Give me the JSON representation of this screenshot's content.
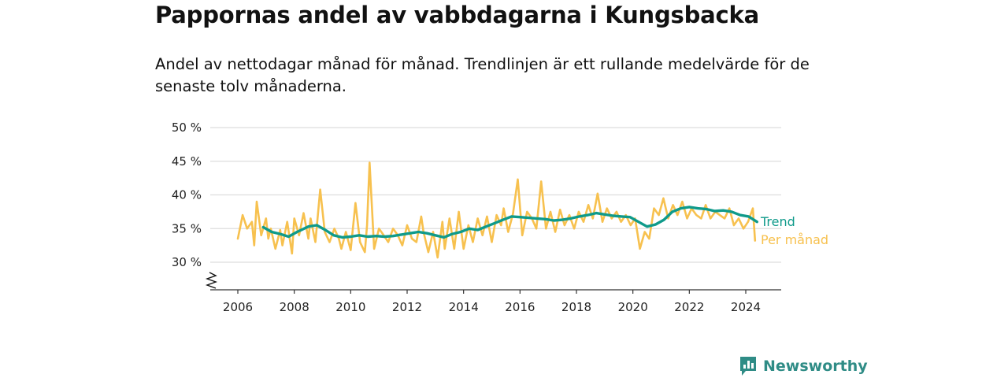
{
  "title": "Pappornas andel av vabbdagarna i Kungsbacka",
  "subtitle": "Andel av nettodagar månad för månad. Trendlinjen är ett rullande medelvärde för de senaste tolv månaderna.",
  "brand": "Newsworthy",
  "colors": {
    "trend": "#0f9a8a",
    "monthly": "#f7c14f",
    "grid": "#dddddd",
    "axis": "#333333",
    "brand": "#2f8c86"
  },
  "chart_data": {
    "type": "line",
    "xlim": [
      2005.2,
      2025.3
    ],
    "ylim": [
      26,
      50
    ],
    "y_broken_axis": true,
    "y_ticks": [
      {
        "value": 30,
        "label": "30 %"
      },
      {
        "value": 35,
        "label": "35 %"
      },
      {
        "value": 40,
        "label": "40 %"
      },
      {
        "value": 45,
        "label": "45 %"
      },
      {
        "value": 50,
        "label": "50 %"
      }
    ],
    "x_ticks": [
      {
        "value": 2006,
        "label": "2006"
      },
      {
        "value": 2008,
        "label": "2008"
      },
      {
        "value": 2010,
        "label": "2010"
      },
      {
        "value": 2012,
        "label": "2012"
      },
      {
        "value": 2014,
        "label": "2014"
      },
      {
        "value": 2016,
        "label": "2016"
      },
      {
        "value": 2018,
        "label": "2018"
      },
      {
        "value": 2020,
        "label": "2020"
      },
      {
        "value": 2022,
        "label": "2022"
      },
      {
        "value": 2024,
        "label": "2024"
      }
    ],
    "grid": true,
    "series": [
      {
        "name": "Per månad",
        "color": "#f7c14f",
        "x": [
          2006.0,
          2006.17,
          2006.33,
          2006.5,
          2006.58,
          2006.67,
          2006.83,
          2007.0,
          2007.08,
          2007.17,
          2007.33,
          2007.5,
          2007.58,
          2007.75,
          2007.92,
          2008.0,
          2008.17,
          2008.33,
          2008.5,
          2008.58,
          2008.75,
          2008.92,
          2009.08,
          2009.25,
          2009.42,
          2009.58,
          2009.67,
          2009.83,
          2010.0,
          2010.17,
          2010.33,
          2010.5,
          2010.58,
          2010.67,
          2010.83,
          2011.0,
          2011.17,
          2011.33,
          2011.5,
          2011.67,
          2011.83,
          2012.0,
          2012.17,
          2012.33,
          2012.5,
          2012.58,
          2012.75,
          2012.92,
          2013.08,
          2013.25,
          2013.33,
          2013.5,
          2013.67,
          2013.83,
          2014.0,
          2014.17,
          2014.33,
          2014.5,
          2014.67,
          2014.83,
          2015.0,
          2015.17,
          2015.33,
          2015.42,
          2015.58,
          2015.75,
          2015.92,
          2016.08,
          2016.25,
          2016.42,
          2016.58,
          2016.75,
          2016.92,
          2017.08,
          2017.25,
          2017.42,
          2017.58,
          2017.75,
          2017.92,
          2018.08,
          2018.25,
          2018.42,
          2018.58,
          2018.75,
          2018.92,
          2019.08,
          2019.25,
          2019.42,
          2019.58,
          2019.75,
          2019.92,
          2020.08,
          2020.25,
          2020.42,
          2020.58,
          2020.75,
          2020.92,
          2021.08,
          2021.25,
          2021.42,
          2021.58,
          2021.75,
          2021.92,
          2022.08,
          2022.25,
          2022.42,
          2022.58,
          2022.75,
          2022.92,
          2023.08,
          2023.25,
          2023.42,
          2023.58,
          2023.75,
          2023.92,
          2024.08,
          2024.25,
          2024.33
        ],
        "values": [
          33.5,
          37.0,
          35.0,
          36.0,
          32.5,
          39.0,
          34.0,
          36.5,
          33.5,
          35.0,
          32.0,
          34.8,
          32.5,
          36.0,
          31.3,
          36.5,
          34.0,
          37.3,
          33.5,
          36.5,
          33.0,
          40.8,
          34.5,
          33.0,
          35.0,
          33.5,
          32.0,
          34.5,
          31.8,
          38.8,
          33.0,
          31.5,
          35.5,
          44.8,
          32.0,
          35.0,
          34.0,
          33.0,
          35.0,
          34.0,
          32.5,
          35.5,
          33.5,
          33.0,
          36.8,
          34.5,
          31.5,
          34.5,
          30.7,
          36.0,
          32.0,
          36.5,
          32.0,
          37.5,
          32.0,
          35.5,
          33.0,
          36.5,
          34.0,
          36.8,
          33.0,
          37.0,
          35.5,
          38.0,
          34.5,
          37.2,
          42.3,
          34.0,
          37.5,
          36.5,
          35.0,
          42.0,
          35.0,
          37.5,
          34.5,
          37.8,
          35.5,
          37.0,
          35.0,
          37.5,
          36.0,
          38.5,
          36.5,
          40.2,
          36.0,
          38.0,
          36.5,
          37.5,
          36.0,
          37.0,
          35.5,
          36.5,
          32.0,
          34.5,
          33.5,
          38.0,
          37.0,
          39.5,
          36.5,
          38.5,
          37.0,
          39.0,
          36.5,
          38.0,
          37.0,
          36.5,
          38.5,
          36.5,
          37.5,
          37.0,
          36.5,
          38.0,
          35.5,
          36.5,
          35.0,
          36.0,
          38.0,
          33.2
        ]
      },
      {
        "name": "Trend",
        "color": "#0f9a8a",
        "x": [
          2006.9,
          2007.2,
          2007.5,
          2007.8,
          2008.1,
          2008.5,
          2008.8,
          2009.1,
          2009.4,
          2009.7,
          2010.0,
          2010.3,
          2010.6,
          2010.9,
          2011.2,
          2011.5,
          2011.8,
          2012.1,
          2012.4,
          2012.7,
          2013.0,
          2013.3,
          2013.6,
          2013.9,
          2014.2,
          2014.5,
          2014.8,
          2015.1,
          2015.4,
          2015.7,
          2016.0,
          2016.3,
          2016.6,
          2016.9,
          2017.2,
          2017.5,
          2017.8,
          2018.1,
          2018.4,
          2018.7,
          2019.0,
          2019.3,
          2019.6,
          2019.9,
          2020.2,
          2020.5,
          2020.8,
          2021.1,
          2021.4,
          2021.7,
          2022.0,
          2022.3,
          2022.6,
          2022.9,
          2023.2,
          2023.5,
          2023.8,
          2024.1,
          2024.4
        ],
        "values": [
          35.2,
          34.5,
          34.2,
          33.8,
          34.5,
          35.3,
          35.5,
          34.8,
          34.0,
          33.7,
          33.8,
          34.0,
          33.8,
          33.9,
          33.8,
          33.9,
          34.1,
          34.3,
          34.5,
          34.3,
          34.0,
          33.7,
          34.2,
          34.5,
          35.0,
          34.8,
          35.3,
          35.8,
          36.3,
          36.8,
          36.7,
          36.6,
          36.5,
          36.4,
          36.2,
          36.3,
          36.5,
          36.8,
          37.0,
          37.3,
          37.1,
          36.9,
          36.8,
          36.7,
          36.0,
          35.3,
          35.6,
          36.3,
          37.5,
          38.0,
          38.2,
          38.0,
          37.9,
          37.6,
          37.7,
          37.5,
          37.0,
          36.8,
          36.0
        ]
      }
    ]
  }
}
